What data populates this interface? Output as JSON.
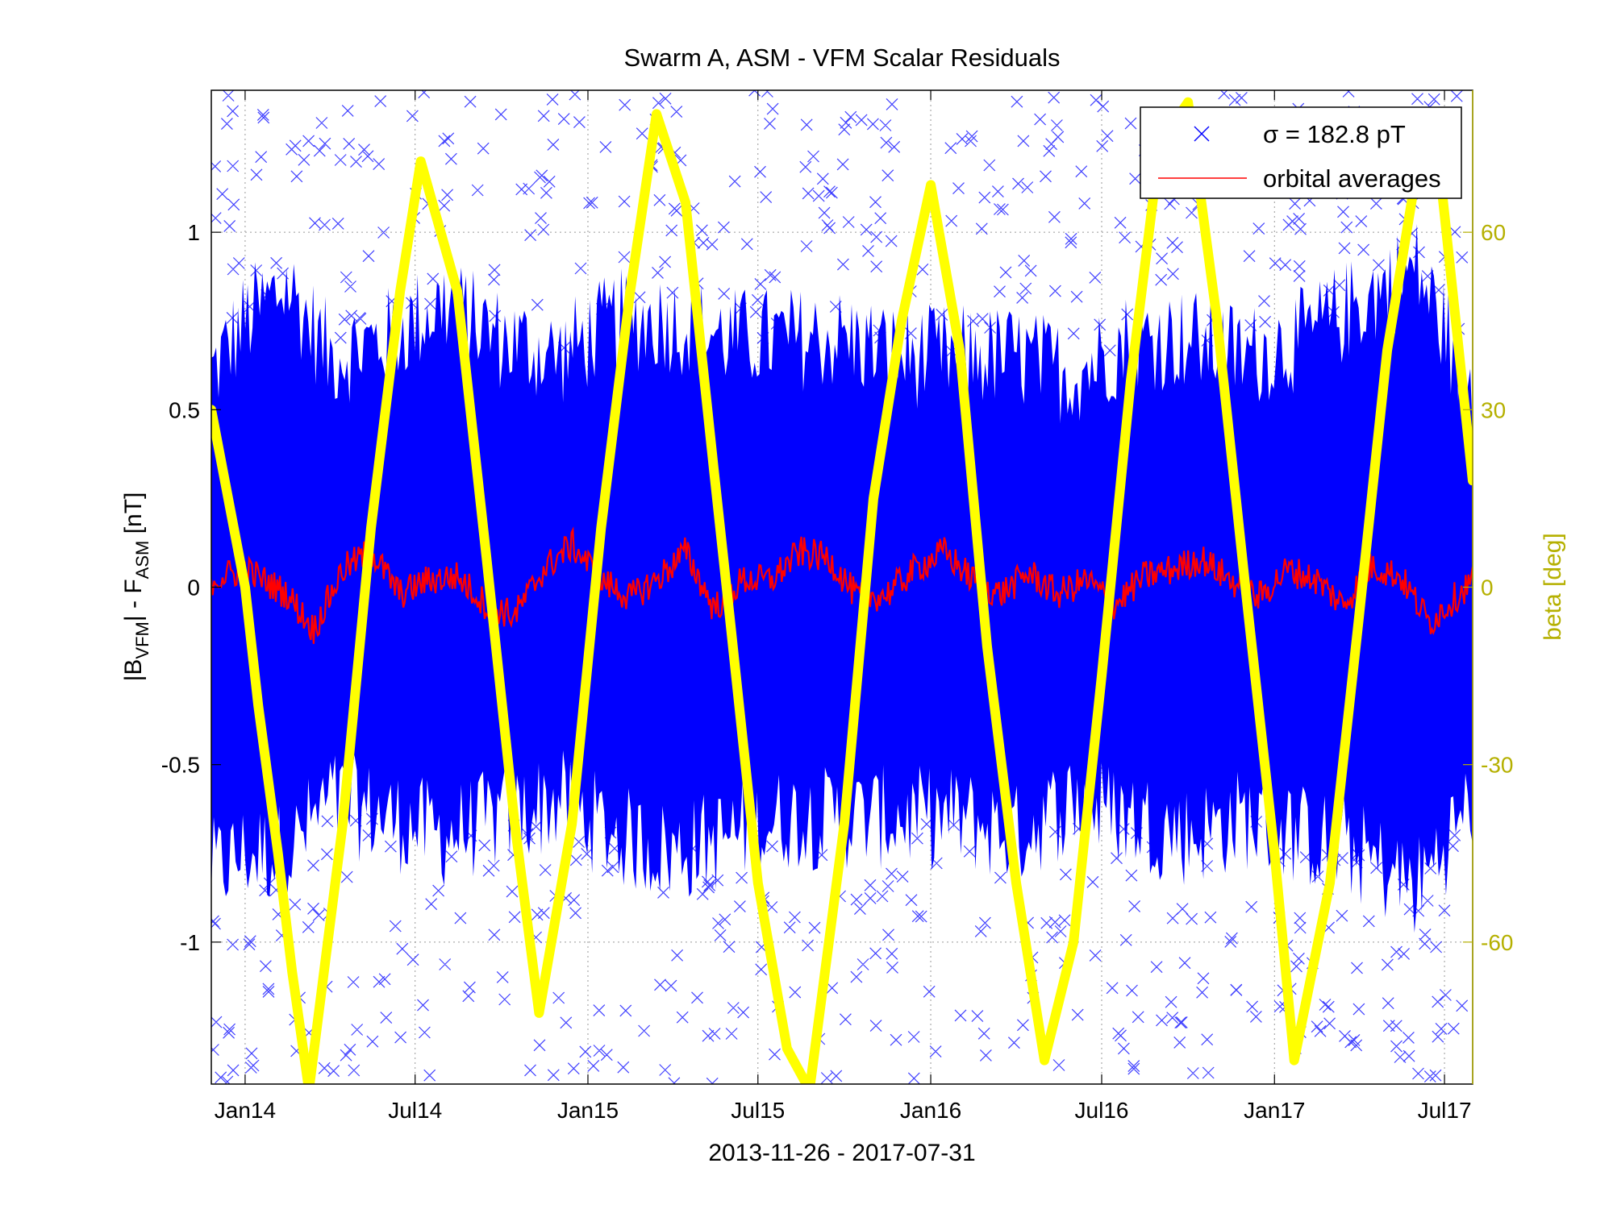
{
  "chart_data": {
    "type": "scatter",
    "title": "Swarm A, ASM - VFM Scalar Residuals",
    "xlabel": "2013-11-26 - 2017-07-31",
    "ylabel_left": {
      "pre": "|B",
      "sub1": "VFM",
      "mid": "| - F",
      "sub2": "ASM",
      "post": " [nT]"
    },
    "ylabel_right": "beta [deg]",
    "x_range": [
      "2013-11-26",
      "2017-07-31"
    ],
    "x_tick_labels": [
      "Jan14",
      "Jul14",
      "Jan15",
      "Jul15",
      "Jan16",
      "Jul16",
      "Jan17",
      "Jul17"
    ],
    "x_tick_dates": [
      "2014-01-01",
      "2014-07-01",
      "2015-01-01",
      "2015-07-01",
      "2016-01-01",
      "2016-07-01",
      "2017-01-01",
      "2017-07-01"
    ],
    "ylim_left": [
      -1.4,
      1.4
    ],
    "yticks_left": [
      -1,
      -0.5,
      0,
      0.5,
      1
    ],
    "ytick_labels_left": [
      "-1",
      "-0.5",
      "0",
      "0.5",
      "1"
    ],
    "ylim_right": [
      -84,
      84
    ],
    "yticks_right": [
      -60,
      -30,
      0,
      30,
      60
    ],
    "ytick_labels_right": [
      "-60",
      "-30",
      "0",
      "30",
      "60"
    ],
    "grid": true,
    "legend_position": "top-right",
    "legend": {
      "sigma_entry": "σ = 182.8 pT",
      "avg_entry": "orbital averages"
    },
    "colors": {
      "residuals": "#0000ff",
      "orbital_averages": "#ff0000",
      "beta": "#ffff00",
      "right_axis": "#b5b000"
    },
    "series": [
      {
        "name": "σ = 182.8 pT",
        "kind": "scatter-envelope",
        "date": [
          "2013-11-26",
          "2014-01-01",
          "2014-02-15",
          "2014-04-01",
          "2014-06-01",
          "2014-08-01",
          "2014-10-01",
          "2014-12-01",
          "2015-02-01",
          "2015-04-01",
          "2015-06-01",
          "2015-08-01",
          "2015-10-01",
          "2015-12-01",
          "2016-02-01",
          "2016-04-01",
          "2016-06-01",
          "2016-08-01",
          "2016-10-01",
          "2016-12-01",
          "2017-02-01",
          "2017-04-01",
          "2017-06-01",
          "2017-07-31"
        ],
        "upper": [
          0.6,
          0.75,
          0.85,
          0.65,
          0.7,
          0.8,
          0.7,
          0.65,
          0.75,
          0.75,
          0.7,
          0.7,
          0.7,
          0.65,
          0.65,
          0.65,
          0.6,
          0.7,
          0.7,
          0.65,
          0.7,
          0.8,
          0.9,
          0.55
        ],
        "lower": [
          -0.8,
          -0.75,
          -0.75,
          -0.6,
          -0.65,
          -0.7,
          -0.65,
          -0.6,
          -0.7,
          -0.75,
          -0.7,
          -0.65,
          -0.65,
          -0.65,
          -0.65,
          -0.7,
          -0.6,
          -0.65,
          -0.7,
          -0.65,
          -0.7,
          -0.75,
          -0.85,
          -0.6
        ]
      },
      {
        "name": "orbital averages",
        "kind": "line",
        "date": [
          "2013-11-26",
          "2014-01-01",
          "2014-02-15",
          "2014-03-15",
          "2014-04-15",
          "2014-05-15",
          "2014-06-15",
          "2014-07-15",
          "2014-08-15",
          "2014-09-15",
          "2014-10-15",
          "2014-11-15",
          "2014-12-15",
          "2015-01-15",
          "2015-02-15",
          "2015-03-15",
          "2015-04-15",
          "2015-05-15",
          "2015-06-15",
          "2015-07-15",
          "2015-08-15",
          "2015-09-15",
          "2015-10-15",
          "2015-11-15",
          "2015-12-15",
          "2016-01-15",
          "2016-02-15",
          "2016-03-15",
          "2016-04-15",
          "2016-05-15",
          "2016-06-15",
          "2016-07-15",
          "2016-08-15",
          "2016-09-15",
          "2016-10-15",
          "2016-11-15",
          "2016-12-15",
          "2017-01-15",
          "2017-02-15",
          "2017-03-15",
          "2017-04-15",
          "2017-05-15",
          "2017-06-15",
          "2017-07-31"
        ],
        "values": [
          0.02,
          0.05,
          -0.02,
          -0.12,
          0.05,
          0.1,
          -0.02,
          0.02,
          0.03,
          -0.05,
          -0.08,
          0.05,
          0.12,
          0.02,
          -0.03,
          0.02,
          0.1,
          -0.06,
          0.02,
          0.02,
          0.1,
          0.08,
          -0.03,
          -0.02,
          0.05,
          0.1,
          0.02,
          -0.02,
          0.04,
          -0.02,
          0.02,
          -0.05,
          0.03,
          0.05,
          0.08,
          0.02,
          -0.03,
          0.05,
          0.02,
          -0.05,
          0.06,
          0.03,
          -0.1,
          0.02
        ]
      },
      {
        "name": "beta",
        "kind": "line",
        "axis": "right",
        "date": [
          "2013-11-26",
          "2014-01-01",
          "2014-01-15",
          "2014-02-05",
          "2014-02-20",
          "2014-03-10",
          "2014-04-15",
          "2014-05-15",
          "2014-06-15",
          "2014-07-07",
          "2014-08-15",
          "2014-09-15",
          "2014-10-15",
          "2014-11-10",
          "2014-12-15",
          "2015-01-15",
          "2015-02-15",
          "2015-03-15",
          "2015-04-15",
          "2015-05-15",
          "2015-06-01",
          "2015-07-01",
          "2015-08-01",
          "2015-08-25",
          "2015-10-01",
          "2015-11-01",
          "2015-12-01",
          "2016-01-01",
          "2016-02-01",
          "2016-03-01",
          "2016-04-01",
          "2016-05-01",
          "2016-06-01",
          "2016-07-01",
          "2016-08-01",
          "2016-09-01",
          "2016-10-01",
          "2016-11-01",
          "2016-12-01",
          "2017-01-01",
          "2017-01-22",
          "2017-03-01",
          "2017-04-01",
          "2017-05-01",
          "2017-06-01",
          "2017-06-25",
          "2017-07-31"
        ],
        "values": [
          30,
          0,
          -20,
          -45,
          -65,
          -85,
          -40,
          10,
          50,
          72,
          50,
          5,
          -40,
          -72,
          -40,
          10,
          50,
          80,
          65,
          20,
          -5,
          -50,
          -78,
          -85,
          -40,
          15,
          45,
          68,
          40,
          -10,
          -50,
          -80,
          -60,
          -15,
          35,
          75,
          82,
          45,
          0,
          -45,
          -80,
          -50,
          -5,
          40,
          70,
          72,
          18
        ]
      }
    ]
  }
}
